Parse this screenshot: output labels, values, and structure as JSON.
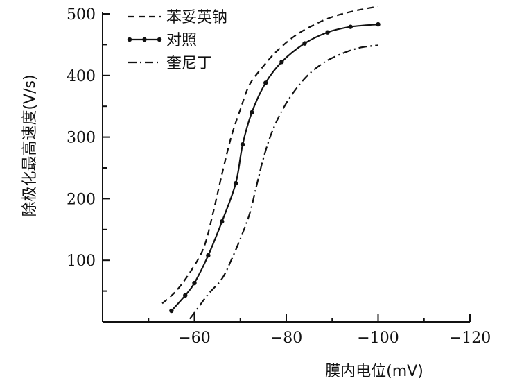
{
  "chart_data": {
    "type": "line",
    "xlabel": "膜内电位(mV)",
    "ylabel": "除极化最高速度(V/s)",
    "x_ticks": [
      "−60",
      "−80",
      "−100",
      "−120"
    ],
    "y_ticks": [
      "100",
      "200",
      "300",
      "400",
      "500"
    ],
    "xlim": [
      -40,
      -120
    ],
    "ylim": [
      0,
      500
    ],
    "x_reversed": true,
    "grid": false,
    "legend_position": "top-left",
    "series": [
      {
        "name": "苯妥英钠",
        "style": "dashed",
        "color": "#111111",
        "markers": false,
        "points": [
          [
            -53,
            30
          ],
          [
            -56,
            50
          ],
          [
            -59,
            80
          ],
          [
            -62,
            120
          ],
          [
            -64,
            175
          ],
          [
            -66,
            240
          ],
          [
            -68,
            300
          ],
          [
            -70,
            345
          ],
          [
            -72,
            385
          ],
          [
            -75,
            415
          ],
          [
            -78,
            440
          ],
          [
            -82,
            465
          ],
          [
            -86,
            482
          ],
          [
            -90,
            495
          ],
          [
            -95,
            505
          ],
          [
            -100,
            512
          ]
        ]
      },
      {
        "name": "对照",
        "style": "solid",
        "color": "#111111",
        "markers": true,
        "points": [
          [
            -55,
            18
          ],
          [
            -58,
            43
          ],
          [
            -60,
            63
          ],
          [
            -63,
            108
          ],
          [
            -66,
            163
          ],
          [
            -69,
            225
          ],
          [
            -70.5,
            288
          ],
          [
            -72.5,
            340
          ],
          [
            -75.5,
            388
          ],
          [
            -79,
            422
          ],
          [
            -84,
            452
          ],
          [
            -89,
            470
          ],
          [
            -94,
            479
          ],
          [
            -100,
            483
          ]
        ]
      },
      {
        "name": "奎尼丁",
        "style": "dashdot",
        "color": "#111111",
        "markers": false,
        "points": [
          [
            -59,
            5
          ],
          [
            -61,
            25
          ],
          [
            -63,
            45
          ],
          [
            -66,
            70
          ],
          [
            -68,
            100
          ],
          [
            -70,
            135
          ],
          [
            -72,
            175
          ],
          [
            -73.5,
            220
          ],
          [
            -75,
            265
          ],
          [
            -77,
            310
          ],
          [
            -80,
            355
          ],
          [
            -84,
            395
          ],
          [
            -88,
            420
          ],
          [
            -92,
            435
          ],
          [
            -96,
            445
          ],
          [
            -100,
            449
          ]
        ]
      }
    ]
  }
}
